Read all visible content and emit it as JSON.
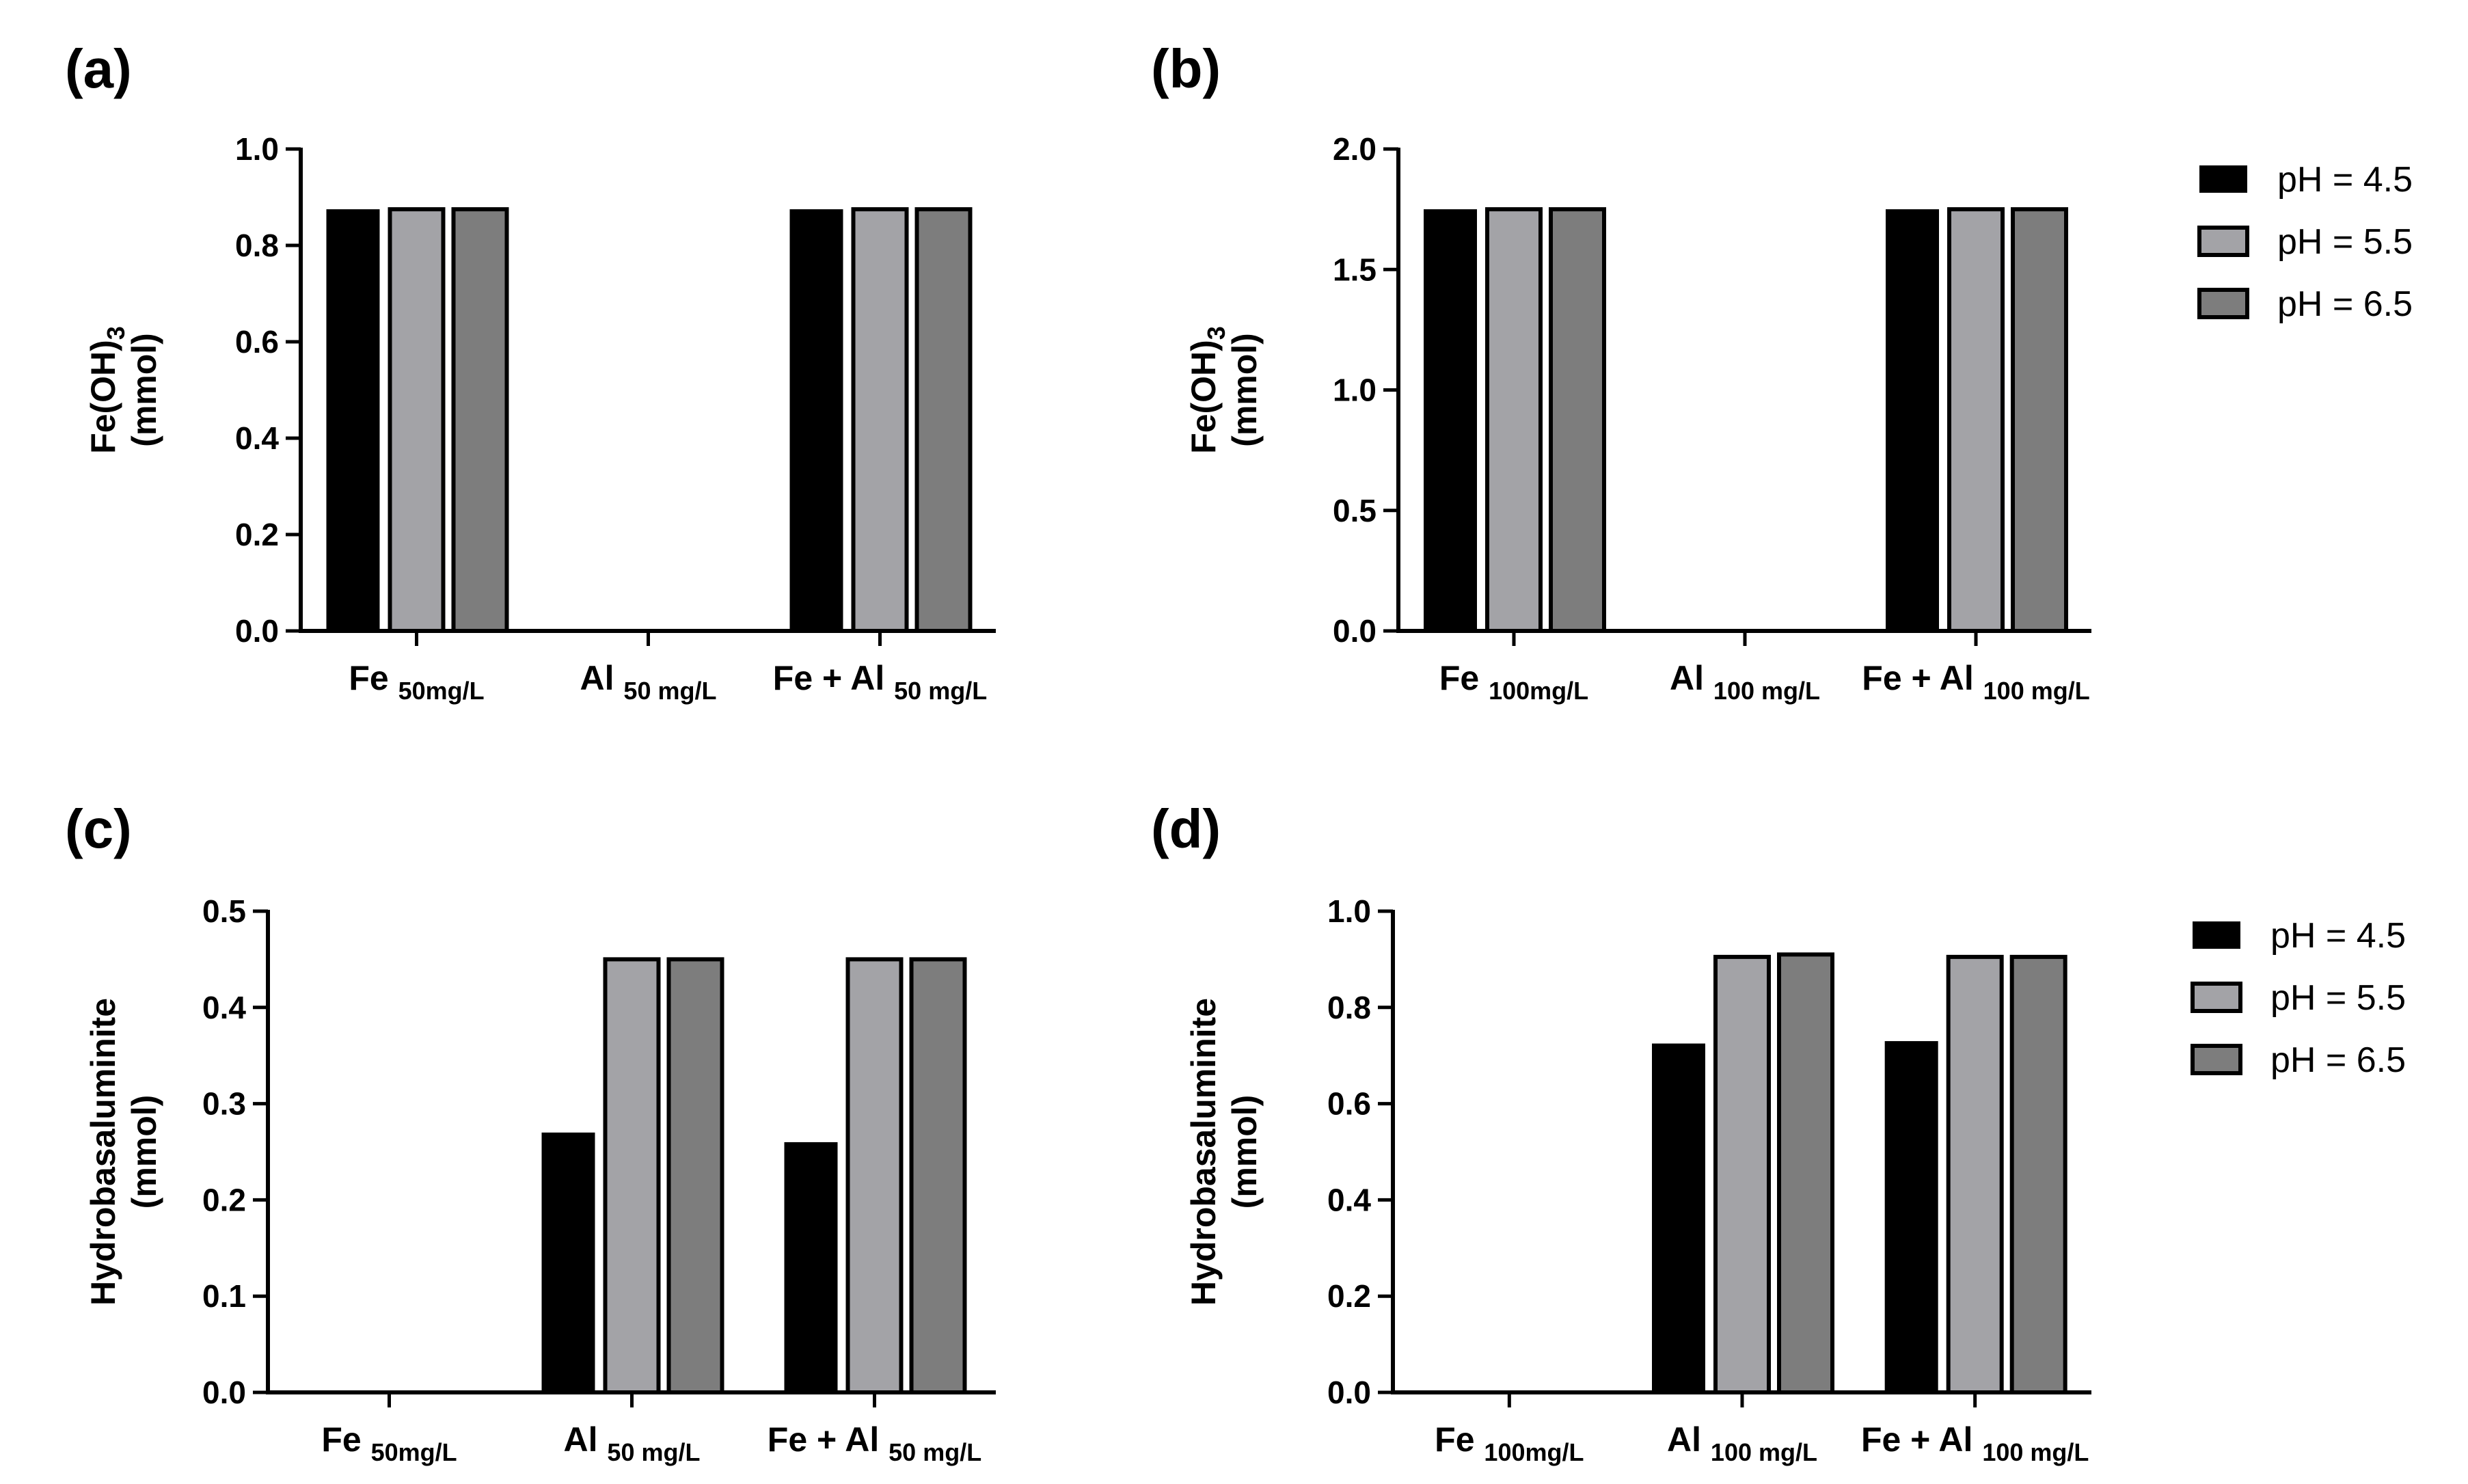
{
  "colors": {
    "ph45": "#000000",
    "ph55": "#a3a3a7",
    "ph65": "#7d7d7d",
    "axis": "#000000"
  },
  "chart_data": [
    {
      "panel": "(a)",
      "type": "bar",
      "ylabel_line1": "Fe(OH)",
      "ylabel_sub": "3",
      "ylabel_line2": "(mmol)",
      "ylim": [
        0,
        1.0
      ],
      "yticks": [
        "0.0",
        "0.2",
        "0.4",
        "0.6",
        "0.8",
        "1.0"
      ],
      "categories": [
        {
          "main": "Fe",
          "sub": "50mg/L"
        },
        {
          "main": "Al",
          "sub": "50 mg/L"
        },
        {
          "main": "Fe + Al",
          "sub": "50 mg/L"
        }
      ],
      "series": [
        {
          "name": "pH = 4.5",
          "values": [
            0.875,
            0,
            0.875
          ]
        },
        {
          "name": "pH = 5.5",
          "values": [
            0.875,
            0,
            0.875
          ]
        },
        {
          "name": "pH = 6.5",
          "values": [
            0.875,
            0,
            0.875
          ]
        }
      ]
    },
    {
      "panel": "(b)",
      "type": "bar",
      "ylabel_line1": "Fe(OH)",
      "ylabel_sub": "3",
      "ylabel_line2": "(mmol)",
      "ylim": [
        0,
        2.0
      ],
      "yticks": [
        "0.0",
        "0.5",
        "1.0",
        "1.5",
        "2.0"
      ],
      "categories": [
        {
          "main": "Fe",
          "sub": "100mg/L"
        },
        {
          "main": "Al",
          "sub": "100 mg/L"
        },
        {
          "main": "Fe + Al",
          "sub": "100 mg/L"
        }
      ],
      "series": [
        {
          "name": "pH = 4.5",
          "values": [
            1.75,
            0,
            1.75
          ]
        },
        {
          "name": "pH = 5.5",
          "values": [
            1.75,
            0,
            1.75
          ]
        },
        {
          "name": "pH = 6.5",
          "values": [
            1.75,
            0,
            1.75
          ]
        }
      ]
    },
    {
      "panel": "(c)",
      "type": "bar",
      "ylabel_line1": "Hydrobasaluminite",
      "ylabel_sub": "",
      "ylabel_line2": "(mmol)",
      "ylim": [
        0,
        0.5
      ],
      "yticks": [
        "0.0",
        "0.1",
        "0.2",
        "0.3",
        "0.4",
        "0.5"
      ],
      "categories": [
        {
          "main": "Fe",
          "sub": "50mg/L"
        },
        {
          "main": "Al",
          "sub": "50 mg/L"
        },
        {
          "main": "Fe + Al",
          "sub": "50 mg/L"
        }
      ],
      "series": [
        {
          "name": "pH = 4.5",
          "values": [
            0,
            0.27,
            0.26
          ]
        },
        {
          "name": "pH = 5.5",
          "values": [
            0,
            0.45,
            0.45
          ]
        },
        {
          "name": "pH = 6.5",
          "values": [
            0,
            0.45,
            0.45
          ]
        }
      ]
    },
    {
      "panel": "(d)",
      "type": "bar",
      "ylabel_line1": "Hydrobasaluminite",
      "ylabel_sub": "",
      "ylabel_line2": "(mmol)",
      "ylim": [
        0,
        1.0
      ],
      "yticks": [
        "0.0",
        "0.2",
        "0.4",
        "0.6",
        "0.8",
        "1.0"
      ],
      "categories": [
        {
          "main": "Fe",
          "sub": "100mg/L"
        },
        {
          "main": "Al",
          "sub": "100 mg/L"
        },
        {
          "main": "Fe + Al",
          "sub": "100 mg/L"
        }
      ],
      "series": [
        {
          "name": "pH = 4.5",
          "values": [
            0,
            0.725,
            0.73
          ]
        },
        {
          "name": "pH = 5.5",
          "values": [
            0,
            0.905,
            0.905
          ]
        },
        {
          "name": "pH = 6.5",
          "values": [
            0,
            0.91,
            0.905
          ]
        }
      ]
    }
  ],
  "legends": [
    {
      "items": [
        "pH = 4.5",
        "pH = 5.5",
        "pH = 6.5"
      ]
    },
    {
      "items": [
        "pH = 4.5",
        "pH = 5.5",
        "pH = 6.5"
      ]
    }
  ]
}
